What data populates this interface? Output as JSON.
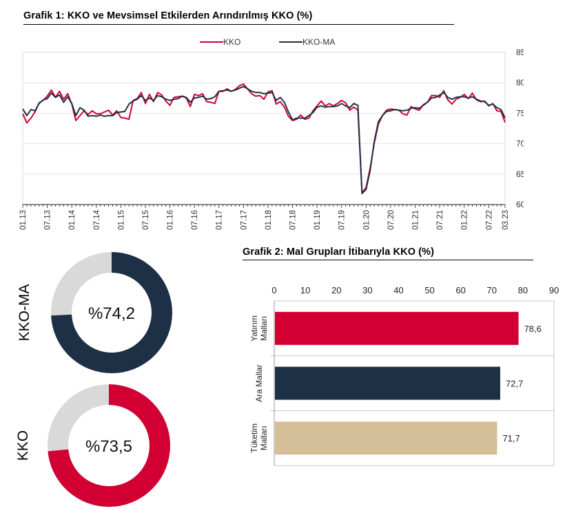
{
  "chart1": {
    "title": "Grafik 1: KKO ve Mevsimsel Etkilerden Arındırılmış KKO (%)"
  },
  "chart2": {
    "title": "Grafik 2: Mal Grupları İtibarıyla KKO (%)"
  },
  "donuts": [
    {
      "label": "KKO-MA",
      "value_text": "%74,2",
      "value": 74.2,
      "color": "#1e3045",
      "rest_color": "#d9d9d9"
    },
    {
      "label": "KKO",
      "value_text": "%73,5",
      "value": 73.5,
      "color": "#d20032",
      "rest_color": "#d9d9d9"
    }
  ],
  "chart_data": [
    {
      "type": "line",
      "title": "Grafik 1: KKO ve Mevsimsel Etkilerden Arındırılmış KKO (%)",
      "xlabel": "",
      "ylabel": "",
      "ylim": [
        60,
        85
      ],
      "yticks": [
        "85",
        "80",
        "75",
        "70",
        "65",
        "60"
      ],
      "xtick_labels": [
        "01.13",
        "07.13",
        "01.14",
        "07.14",
        "01.15",
        "07.15",
        "01.16",
        "07.16",
        "01.17",
        "07.17",
        "01.18",
        "07.18",
        "01.19",
        "07.19",
        "01.20",
        "07.20",
        "01.21",
        "07.21",
        "01.22",
        "07.22",
        "03.23"
      ],
      "grid": "horizontal",
      "legend": "top-center",
      "colors": {
        "KKO": "#d20032",
        "KKO-MA": "#1e3045"
      },
      "x_start": "01.13",
      "x_end": "03.23",
      "series": [
        {
          "name": "KKO",
          "values": [
            74.9,
            73.4,
            74.2,
            75.2,
            76.7,
            77.1,
            77.8,
            78.8,
            77.6,
            78.6,
            77.3,
            78.2,
            76.5,
            73.8,
            74.6,
            75.4,
            74.8,
            75.4,
            74.9,
            74.9,
            75.2,
            75.5,
            74.7,
            75.4,
            74.3,
            74.2,
            74.0,
            77.1,
            77.4,
            78.4,
            76.6,
            78.1,
            76.9,
            78.4,
            78.0,
            77.0,
            76.3,
            77.6,
            77.7,
            77.8,
            77.5,
            76.1,
            78.1,
            77.9,
            78.2,
            76.9,
            76.8,
            76.6,
            78.6,
            78.6,
            79.0,
            78.6,
            78.9,
            79.5,
            79.8,
            79.0,
            78.2,
            77.8,
            77.9,
            77.3,
            78.5,
            78.7,
            76.5,
            76.9,
            76.0,
            74.5,
            73.8,
            74.0,
            74.7,
            74.0,
            74.2,
            75.4,
            76.2,
            77.0,
            76.2,
            76.6,
            76.2,
            76.6,
            77.1,
            76.7,
            75.5,
            76.0,
            75.5,
            61.9,
            62.8,
            66.0,
            70.1,
            73.2,
            74.6,
            75.5,
            75.7,
            75.6,
            75.5,
            74.9,
            74.7,
            76.1,
            75.7,
            75.5,
            76.4,
            76.8,
            77.9,
            77.9,
            77.6,
            78.7,
            77.2,
            76.5,
            77.3,
            77.6,
            78.1,
            77.4,
            78.3,
            77.2,
            76.9,
            77.0,
            76.2,
            76.6,
            75.4,
            75.3,
            73.5
          ]
        },
        {
          "name": "KKO-MA",
          "values": [
            75.7,
            74.6,
            75.6,
            75.4,
            76.6,
            77.2,
            77.4,
            78.3,
            77.6,
            78.0,
            76.8,
            77.7,
            76.6,
            74.6,
            75.9,
            75.5,
            74.5,
            74.6,
            74.5,
            74.7,
            74.5,
            74.6,
            74.6,
            75.1,
            75.2,
            75.3,
            76.5,
            77.0,
            77.3,
            77.9,
            77.1,
            77.5,
            77.1,
            77.9,
            77.7,
            77.3,
            77.1,
            77.3,
            77.4,
            77.8,
            77.6,
            76.8,
            77.5,
            77.6,
            77.8,
            77.3,
            77.4,
            77.7,
            78.6,
            78.7,
            78.8,
            78.6,
            78.8,
            79.1,
            79.4,
            79.0,
            78.6,
            78.4,
            78.4,
            78.2,
            78.3,
            78.4,
            77.1,
            77.6,
            76.8,
            75.2,
            73.9,
            74.2,
            74.2,
            74.2,
            74.6,
            75.1,
            76.0,
            76.2,
            76.0,
            76.1,
            76.1,
            76.2,
            76.6,
            76.2,
            75.9,
            76.6,
            76.3,
            61.8,
            62.5,
            65.6,
            70.4,
            73.6,
            74.6,
            75.3,
            75.4,
            75.6,
            75.5,
            75.4,
            75.5,
            75.8,
            75.9,
            75.8,
            76.3,
            76.8,
            77.5,
            77.6,
            78.0,
            78.4,
            77.6,
            77.3,
            77.6,
            77.7,
            77.7,
            77.5,
            77.7,
            77.3,
            77.0,
            76.9,
            76.3,
            76.5,
            75.9,
            75.6,
            74.2
          ]
        }
      ]
    },
    {
      "type": "bar",
      "orientation": "horizontal",
      "title": "Grafik 2: Mal Grupları İtibarıyla KKO (%)",
      "categories": [
        "Yatırım Malları",
        "Ara Mallar",
        "Tüketim Malları"
      ],
      "category_lines": [
        [
          "Yatırım",
          "Malları"
        ],
        [
          "Ara Mallar"
        ],
        [
          "Tüketim",
          "Malları"
        ]
      ],
      "values": [
        78.6,
        72.7,
        71.7
      ],
      "value_labels": [
        "78,6",
        "72,7",
        "71,7"
      ],
      "colors": [
        "#d20032",
        "#1e3045",
        "#d5bf98"
      ],
      "xlim": [
        0,
        90
      ],
      "xticks": [
        "0",
        "10",
        "20",
        "30",
        "40",
        "50",
        "60",
        "70",
        "80",
        "90"
      ],
      "xaxis_position": "top",
      "grid": "off"
    }
  ]
}
